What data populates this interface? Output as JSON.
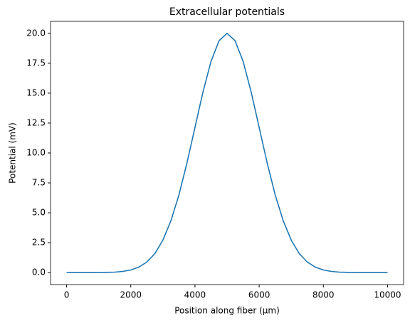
{
  "chart_data": {
    "type": "line",
    "title": "Extracellular potentials",
    "xlabel": "Position along fiber (μm)",
    "ylabel": "Potential (mV)",
    "x": [
      0,
      250,
      500,
      750,
      1000,
      1250,
      1500,
      1750,
      2000,
      2250,
      2500,
      2750,
      3000,
      3250,
      3500,
      3750,
      4000,
      4250,
      4500,
      4750,
      5000,
      5250,
      5500,
      5750,
      6000,
      6250,
      6500,
      6750,
      7000,
      7250,
      7500,
      7750,
      8000,
      8250,
      8500,
      8750,
      9000,
      9250,
      9500,
      9750,
      10000
    ],
    "series": [
      {
        "name": "Potential",
        "color": "#1f77b4",
        "values": [
          0,
          0,
          0,
          0,
          0.01,
          0.02,
          0.04,
          0.1,
          0.22,
          0.46,
          0.88,
          1.59,
          2.71,
          4.33,
          6.49,
          9.16,
          12.13,
          15.1,
          17.65,
          19.38,
          20,
          19.38,
          17.65,
          15.1,
          12.13,
          9.16,
          6.49,
          4.33,
          2.71,
          1.59,
          0.88,
          0.46,
          0.22,
          0.1,
          0.04,
          0.02,
          0.01,
          0,
          0,
          0,
          0
        ]
      }
    ],
    "xlim": [
      -500,
      10500
    ],
    "ylim": [
      -1,
      21
    ],
    "xticks": [
      0,
      2000,
      4000,
      6000,
      8000,
      10000
    ],
    "yticks": [
      {
        "value": 0,
        "label": "0.0"
      },
      {
        "value": 2.5,
        "label": "2.5"
      },
      {
        "value": 5,
        "label": "5.0"
      },
      {
        "value": 7.5,
        "label": "7.5"
      },
      {
        "value": 10,
        "label": "10.0"
      },
      {
        "value": 12.5,
        "label": "12.5"
      },
      {
        "value": 15,
        "label": "15.0"
      },
      {
        "value": 17.5,
        "label": "17.5"
      },
      {
        "value": 20,
        "label": "20.0"
      }
    ],
    "grid": false
  }
}
